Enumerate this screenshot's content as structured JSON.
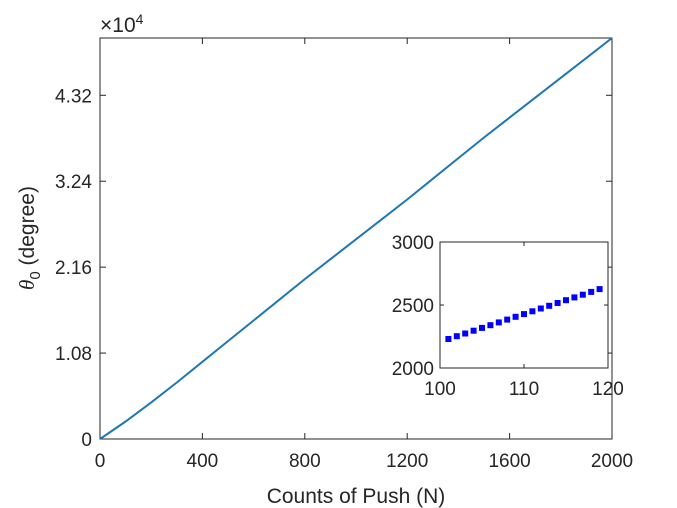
{
  "chart_data": [
    {
      "type": "line",
      "xlabel": "Counts of Push (N)",
      "ylabel_symbol": "θ",
      "ylabel_subscript": "0",
      "ylabel_unit": "(degree)",
      "exponent_prefix": "×10",
      "exponent_power": "4",
      "xlim": [
        0,
        2000
      ],
      "ylim": [
        0,
        5.04
      ],
      "x_ticks": [
        0,
        400,
        800,
        1200,
        1600,
        2000
      ],
      "x_tick_labels": [
        "0",
        "400",
        "800",
        "1200",
        "1600",
        "2000"
      ],
      "y_ticks": [
        0,
        1.08,
        2.16,
        3.24,
        4.32
      ],
      "y_tick_labels": [
        "0",
        "1.08",
        "2.16",
        "3.24",
        "4.32"
      ],
      "grid": false,
      "line_color": "#1f77b4",
      "series": [
        {
          "x": [
            0,
            100,
            200,
            300,
            400,
            500,
            600,
            700,
            800,
            900,
            1000,
            1100,
            1200,
            1300,
            1400,
            1500,
            1600,
            1700,
            1800,
            1900,
            2000
          ],
          "y": [
            0,
            0.22,
            0.46,
            0.71,
            0.97,
            1.23,
            1.49,
            1.75,
            2.01,
            2.26,
            2.51,
            2.76,
            3.01,
            3.27,
            3.53,
            3.79,
            4.04,
            4.29,
            4.54,
            4.79,
            5.04
          ]
        }
      ]
    },
    {
      "type": "scatter",
      "xlim": [
        100,
        120
      ],
      "ylim": [
        2000,
        3000
      ],
      "x_ticks": [
        100,
        110,
        120
      ],
      "x_tick_labels": [
        "100",
        "110",
        "120"
      ],
      "y_ticks": [
        2000,
        2500,
        3000
      ],
      "y_tick_labels": [
        "2000",
        "2500",
        "3000"
      ],
      "grid": false,
      "marker": "square",
      "marker_color": "#0000ff",
      "series": [
        {
          "x": [
            101,
            102,
            103,
            104,
            105,
            106,
            107,
            108,
            109,
            110,
            111,
            112,
            113,
            114,
            115,
            116,
            117,
            118,
            119
          ],
          "y": [
            2230,
            2252,
            2274,
            2296,
            2318,
            2340,
            2362,
            2384,
            2406,
            2428,
            2450,
            2472,
            2494,
            2516,
            2538,
            2560,
            2582,
            2604,
            2626
          ]
        }
      ]
    }
  ]
}
